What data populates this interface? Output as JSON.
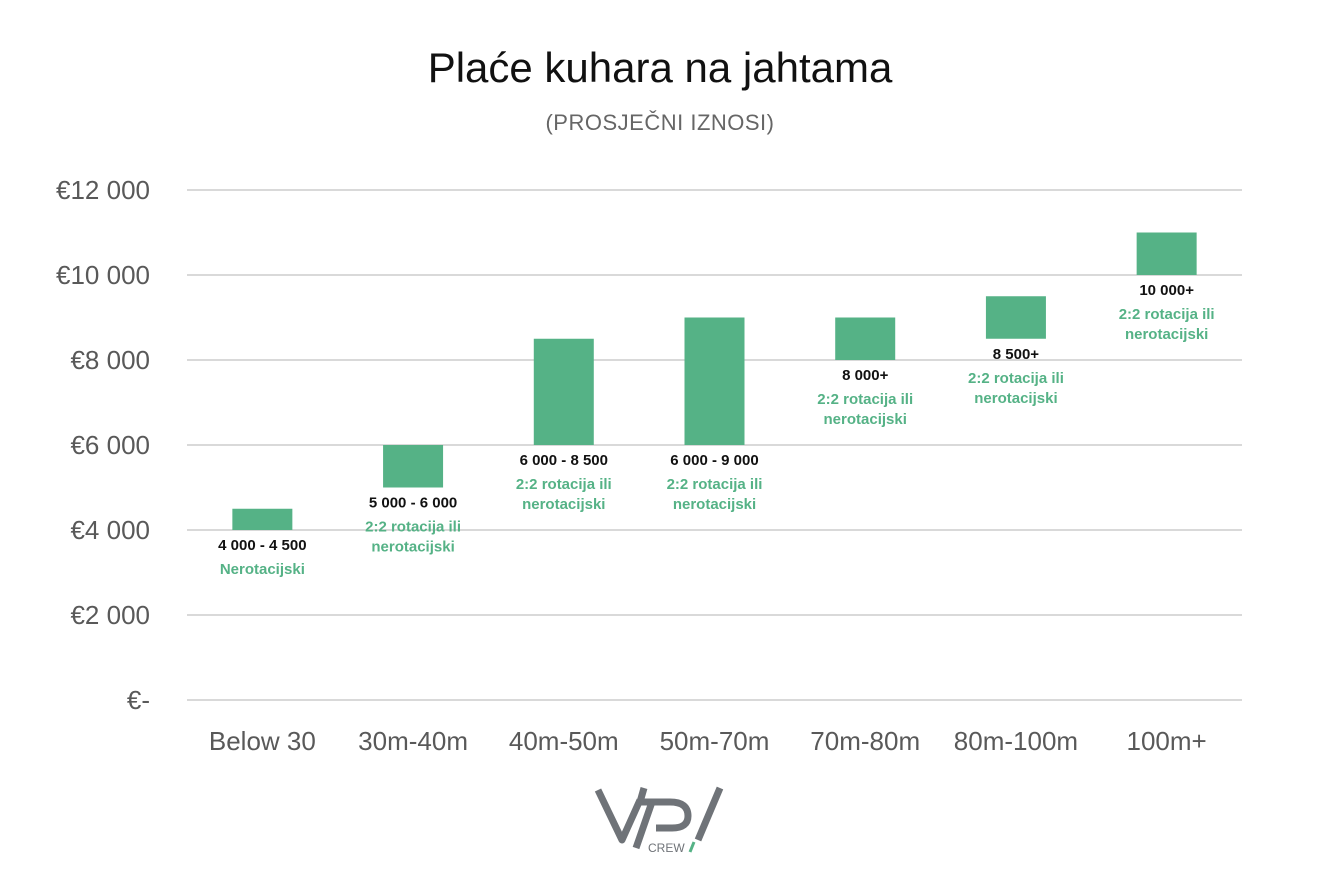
{
  "title": "Plaće kuhara na jahtama",
  "subtitle": "(PROSJEČNI IZNOSI)",
  "colors": {
    "bar": "#55b286",
    "grid": "#d9d9d9",
    "tick": "#595959",
    "range_label": "#111111",
    "note_label": "#55b286",
    "logo": "#6f7378",
    "logo_accent": "#55b286"
  },
  "logo": {
    "text": "CREW"
  },
  "chart_data": {
    "type": "bar",
    "title": "Plaće kuhara na jahtama",
    "subtitle": "(PROSJEČNI IZNOSI)",
    "categories": [
      "Below 30",
      "30m-40m",
      "40m-50m",
      "50m-70m",
      "70m-80m",
      "80m-100m",
      "100m+"
    ],
    "ranges": [
      {
        "low": 4000,
        "high": 4500,
        "label": "4 000 - 4 500",
        "note": [
          "Nerotacijski"
        ]
      },
      {
        "low": 5000,
        "high": 6000,
        "label": "5 000 - 6 000",
        "note": [
          "2:2 rotacija ili",
          "nerotacijski"
        ]
      },
      {
        "low": 6000,
        "high": 8500,
        "label": "6 000 - 8 500",
        "note": [
          "2:2 rotacija ili",
          "nerotacijski"
        ]
      },
      {
        "low": 6000,
        "high": 9000,
        "label": "6 000 - 9 000",
        "note": [
          "2:2 rotacija ili",
          "nerotacijski"
        ]
      },
      {
        "low": 8000,
        "high": 9000,
        "label": "8 000+",
        "note": [
          "2:2 rotacija ili",
          "nerotacijski"
        ]
      },
      {
        "low": 8500,
        "high": 9500,
        "label": "8 500+",
        "note": [
          "2:2 rotacija ili",
          "nerotacijski"
        ]
      },
      {
        "low": 10000,
        "high": 11000,
        "label": "10 000+",
        "note": [
          "2:2 rotacija ili",
          "nerotacijski"
        ]
      }
    ],
    "ylim": [
      0,
      12000
    ],
    "yticks": [
      0,
      2000,
      4000,
      6000,
      8000,
      10000,
      12000
    ],
    "ytick_labels": [
      "€-",
      "€2 000",
      "€4 000",
      "€6 000",
      "€8 000",
      "€10 000",
      "€12 000"
    ],
    "grid": true,
    "legend": "none"
  }
}
